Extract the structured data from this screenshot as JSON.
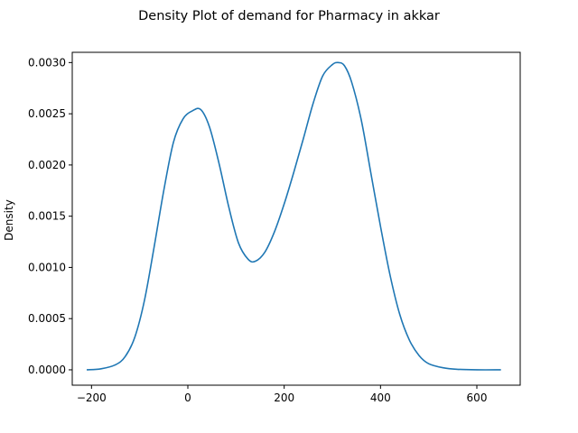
{
  "chart_data": {
    "type": "line",
    "title": "Density Plot of demand for Pharmacy in akkar",
    "xlabel": "",
    "ylabel": "Density",
    "xlim": [
      -240,
      690
    ],
    "ylim": [
      -0.00015,
      0.0031
    ],
    "x_ticks": [
      -200,
      0,
      200,
      400,
      600
    ],
    "x_tick_labels": [
      "−200",
      "0",
      "200",
      "400",
      "600"
    ],
    "y_ticks": [
      0,
      0.0005,
      0.001,
      0.0015,
      0.002,
      0.0025,
      0.003
    ],
    "y_tick_labels": [
      "0.0000",
      "0.0005",
      "0.0010",
      "0.0015",
      "0.0020",
      "0.0025",
      "0.0030"
    ],
    "grid": false,
    "series": [
      {
        "color": "#1f77b4",
        "x": [
          -210,
          -180,
          -150,
          -130,
          -110,
          -90,
          -70,
          -50,
          -30,
          -10,
          10,
          27,
          45,
          65,
          85,
          105,
          125,
          140,
          160,
          180,
          200,
          220,
          240,
          260,
          280,
          300,
          312,
          325,
          340,
          360,
          380,
          400,
          420,
          440,
          460,
          480,
          500,
          530,
          560,
          600,
          650
        ],
        "y": [
          0.0,
          1e-05,
          5e-05,
          0.00013,
          0.00032,
          0.00068,
          0.0012,
          0.00175,
          0.00222,
          0.00245,
          0.00253,
          0.00254,
          0.00237,
          0.00201,
          0.00159,
          0.00124,
          0.00108,
          0.00106,
          0.00115,
          0.00135,
          0.00162,
          0.00193,
          0.00226,
          0.0026,
          0.00287,
          0.00298,
          0.003,
          0.00297,
          0.00281,
          0.00244,
          0.00192,
          0.0014,
          0.00092,
          0.00054,
          0.00029,
          0.00014,
          6e-05,
          2e-05,
          5e-06,
          0.0,
          0.0
        ]
      }
    ]
  }
}
